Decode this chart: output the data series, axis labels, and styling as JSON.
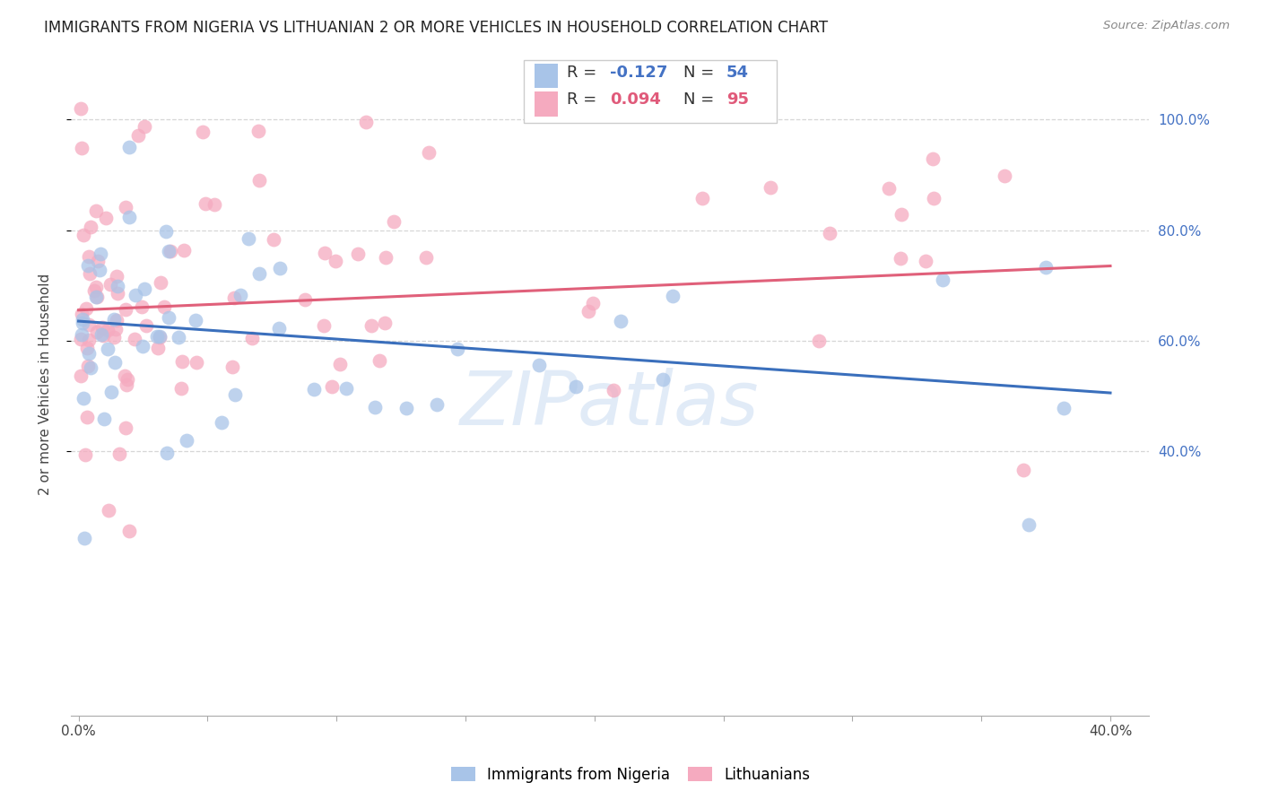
{
  "title": "IMMIGRANTS FROM NIGERIA VS LITHUANIAN 2 OR MORE VEHICLES IN HOUSEHOLD CORRELATION CHART",
  "source": "Source: ZipAtlas.com",
  "ylabel": "2 or more Vehicles in Household",
  "watermark": "ZIPatlas",
  "nigeria_R": -0.127,
  "nigeria_N": 54,
  "lithuanian_R": 0.094,
  "lithuanian_N": 95,
  "nigeria_color": "#a8c4e8",
  "nigerian_line_color": "#3a6fbc",
  "lithuanian_color": "#f5aabf",
  "lithuanian_line_color": "#e0607a",
  "background_color": "#ffffff",
  "grid_color": "#cccccc",
  "xlim_min": -0.003,
  "xlim_max": 0.415,
  "ylim_min": -0.08,
  "ylim_max": 1.12,
  "nig_line_x0": 0.0,
  "nig_line_x1": 0.4,
  "nig_line_y0": 0.635,
  "nig_line_y1": 0.505,
  "lit_line_x0": 0.0,
  "lit_line_x1": 0.4,
  "lit_line_y0": 0.655,
  "lit_line_y1": 0.735,
  "ytick_positions": [
    0.4,
    0.6,
    0.8,
    1.0
  ],
  "ytick_labels": [
    "40.0%",
    "60.0%",
    "80.0%",
    "100.0%"
  ],
  "xtick_positions": [
    0.0,
    0.05,
    0.1,
    0.15,
    0.2,
    0.25,
    0.3,
    0.35,
    0.4
  ],
  "title_fontsize": 12,
  "axis_label_fontsize": 11,
  "tick_fontsize": 11,
  "legend_fontsize": 13,
  "watermark_fontsize": 60,
  "scatter_size": 130,
  "scatter_alpha": 0.75,
  "nig_seed": 77,
  "lit_seed": 42
}
